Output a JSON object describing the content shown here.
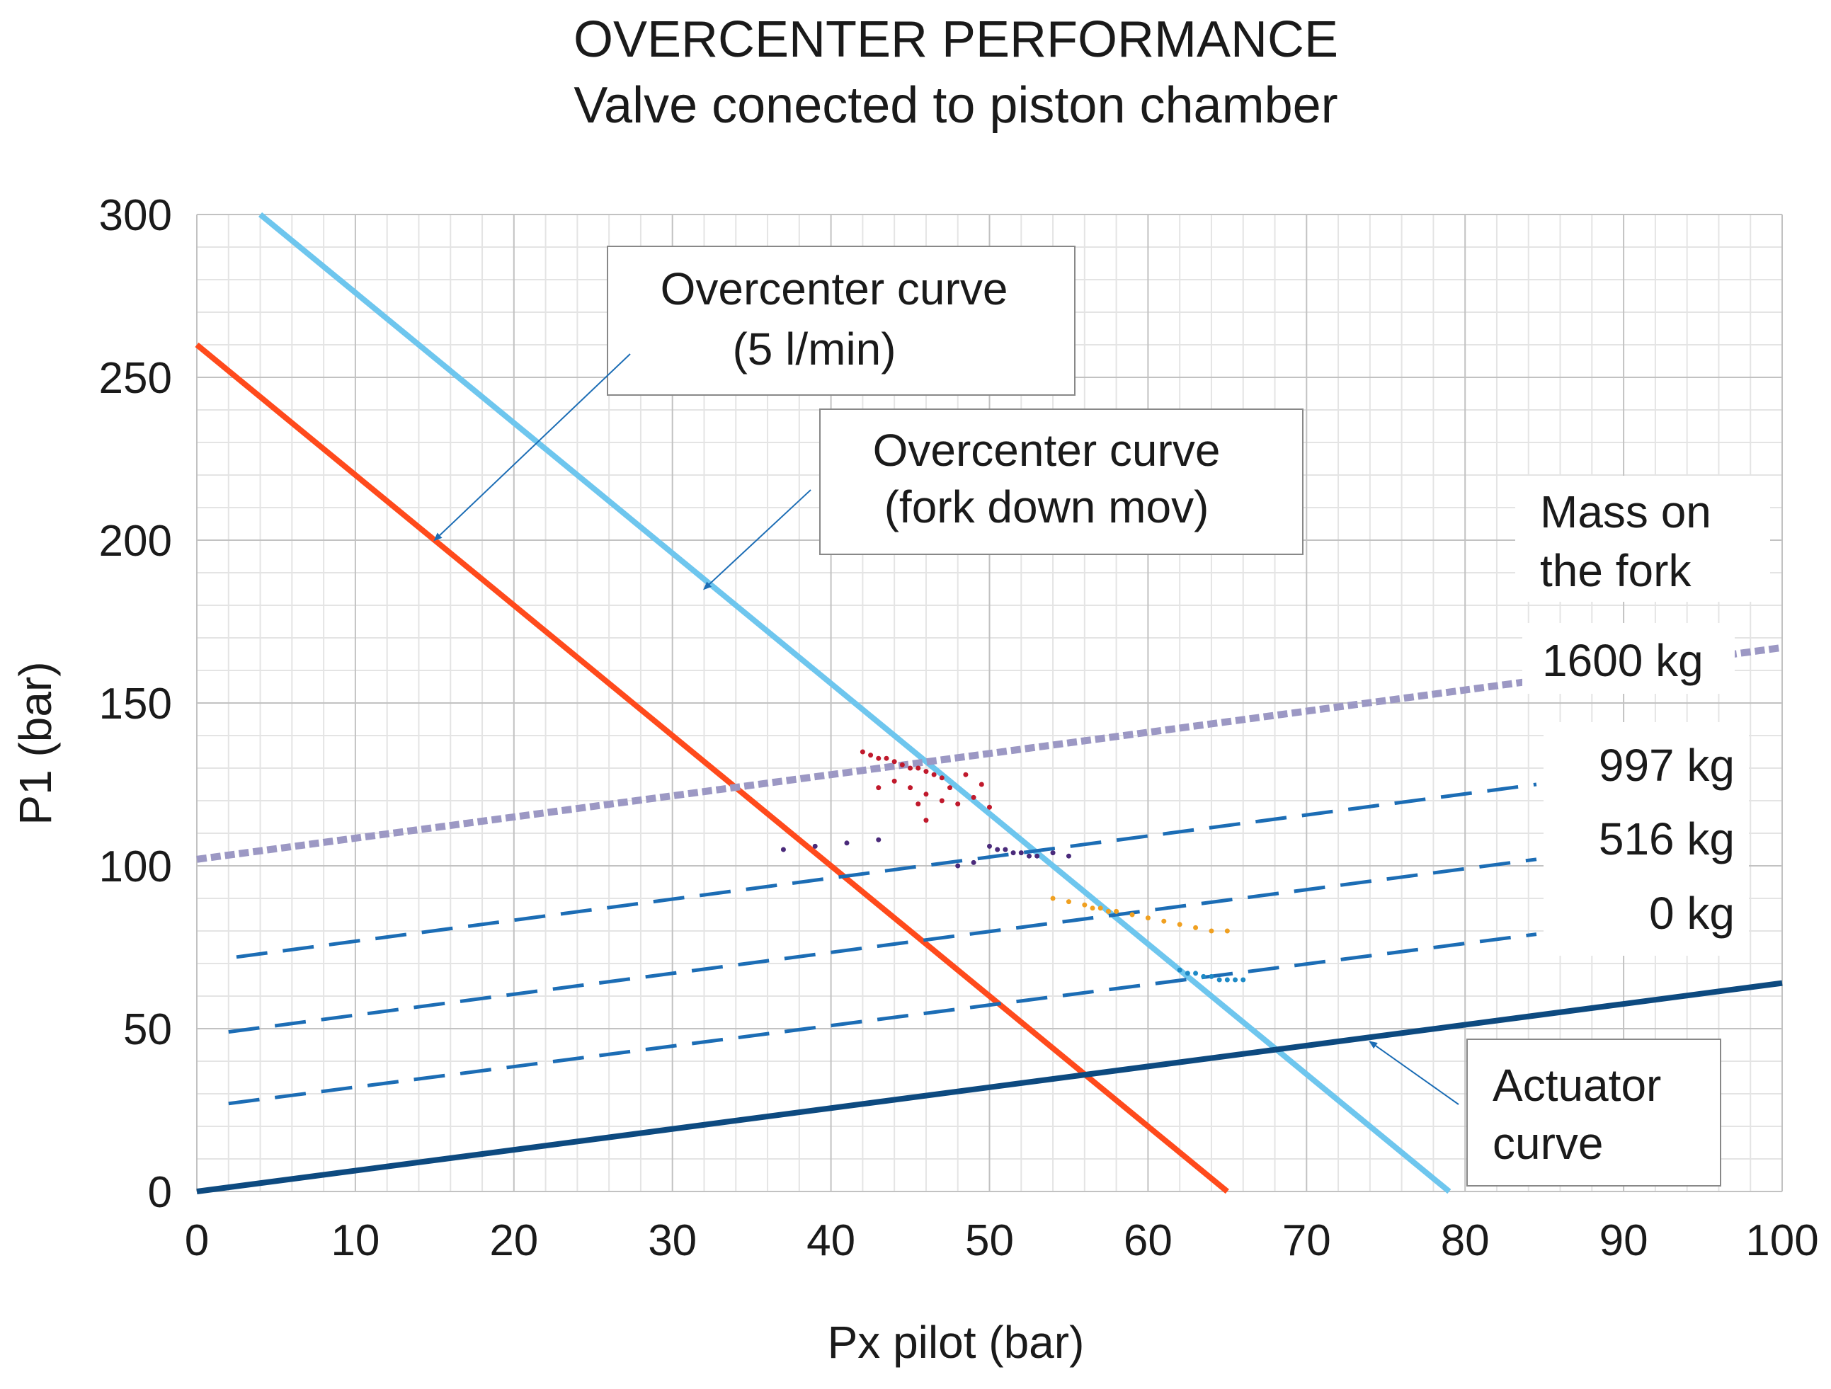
{
  "chart_data": {
    "type": "line",
    "title": "OVERCENTER PERFORMANCE",
    "subtitle": "Valve conected to piston chamber",
    "xlabel": "Px pilot (bar)",
    "ylabel": "P1 (bar)",
    "xlim": [
      0,
      100
    ],
    "ylim": [
      0,
      300
    ],
    "grid": true,
    "x_ticks": [
      "0",
      "10",
      "20",
      "30",
      "40",
      "50",
      "60",
      "70",
      "80",
      "90",
      "100"
    ],
    "y_ticks": [
      "0",
      "50",
      "100",
      "150",
      "200",
      "250",
      "300"
    ],
    "series": [
      {
        "name": "Overcenter curve (5 l/min)",
        "color": "#ff4a1c",
        "style": "solid",
        "x": [
          0,
          65
        ],
        "y": [
          260,
          0
        ]
      },
      {
        "name": "Overcenter curve (fork down mov)",
        "color": "#6ec6ee",
        "style": "solid",
        "x": [
          4,
          79
        ],
        "y": [
          300,
          0
        ]
      },
      {
        "name": "Actuator curve",
        "color": "#0d4a80",
        "style": "solid",
        "x": [
          0,
          100
        ],
        "y": [
          0,
          64
        ]
      },
      {
        "name": "1600 kg",
        "color": "#9c98c4",
        "style": "dotted",
        "x": [
          0,
          100
        ],
        "y": [
          102,
          167
        ]
      },
      {
        "name": "997 kg",
        "color": "#1c6db5",
        "style": "dashed",
        "x": [
          2.5,
          84.5
        ],
        "y": [
          72,
          125
        ]
      },
      {
        "name": "516 kg",
        "color": "#1c6db5",
        "style": "dashed",
        "x": [
          2,
          84.5
        ],
        "y": [
          49,
          102
        ]
      },
      {
        "name": "0 kg",
        "color": "#1c6db5",
        "style": "dashed",
        "x": [
          2,
          84.5
        ],
        "y": [
          27,
          79
        ]
      }
    ],
    "scatter_clusters": [
      {
        "color": "#c0192c",
        "points": [
          [
            42,
            135
          ],
          [
            42.5,
            134
          ],
          [
            43,
            133
          ],
          [
            43.5,
            133
          ],
          [
            44,
            132
          ],
          [
            44.5,
            131
          ],
          [
            45,
            130
          ],
          [
            45.5,
            130
          ],
          [
            46,
            129
          ],
          [
            46.5,
            128
          ],
          [
            47,
            127
          ],
          [
            44,
            126
          ],
          [
            45,
            124
          ],
          [
            46,
            122
          ],
          [
            47,
            120
          ],
          [
            48,
            119
          ],
          [
            49,
            121
          ],
          [
            50,
            118
          ],
          [
            47.5,
            124
          ],
          [
            48.5,
            128
          ],
          [
            46,
            114
          ],
          [
            43,
            124
          ],
          [
            49.5,
            125
          ],
          [
            45.5,
            119
          ]
        ]
      },
      {
        "color": "#4a2a7a",
        "points": [
          [
            50,
            106
          ],
          [
            50.5,
            105
          ],
          [
            51,
            105
          ],
          [
            51.5,
            104
          ],
          [
            52,
            104
          ],
          [
            52.5,
            103
          ],
          [
            53,
            103
          ],
          [
            48,
            100
          ],
          [
            49,
            101
          ],
          [
            37,
            105
          ],
          [
            39,
            106
          ],
          [
            41,
            107
          ],
          [
            43,
            108
          ],
          [
            54,
            104
          ],
          [
            55,
            103
          ]
        ]
      },
      {
        "color": "#f0a020",
        "points": [
          [
            54,
            90
          ],
          [
            55,
            89
          ],
          [
            56,
            88
          ],
          [
            56.5,
            87
          ],
          [
            57,
            87
          ],
          [
            57.5,
            86
          ],
          [
            58,
            86
          ],
          [
            59,
            85
          ],
          [
            60,
            84
          ],
          [
            61,
            83
          ],
          [
            62,
            82
          ],
          [
            63,
            81
          ],
          [
            64,
            80
          ],
          [
            65,
            80
          ]
        ]
      },
      {
        "color": "#1e8ac6",
        "points": [
          [
            62,
            68
          ],
          [
            62.5,
            67
          ],
          [
            63,
            67
          ],
          [
            63.5,
            66
          ],
          [
            64,
            66
          ],
          [
            64.5,
            65
          ],
          [
            65,
            65
          ],
          [
            65.5,
            65
          ],
          [
            66,
            65
          ]
        ]
      }
    ],
    "annotations": {
      "oc5": {
        "line1": "Overcenter curve",
        "line2": "(5 l/min)",
        "arrow_to": [
          15,
          200
        ]
      },
      "ocfork": {
        "line1": "Overcenter curve",
        "line2": "(fork down mov)",
        "arrow_to": [
          32,
          185
        ]
      },
      "mass": {
        "line1": "Mass on",
        "line2": "the fork"
      },
      "mass_1600": "1600 kg",
      "mass_997": "997 kg",
      "mass_516": "516 kg",
      "mass_0": "0 kg",
      "actuator": {
        "line1": "Actuator",
        "line2": "curve",
        "arrow_to": [
          74,
          46
        ]
      }
    }
  }
}
